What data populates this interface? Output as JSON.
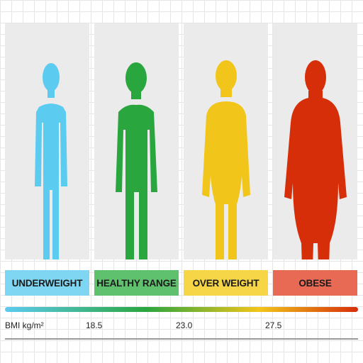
{
  "categories": [
    {
      "key": "underweight",
      "label": "UNDERWEIGHT",
      "figure_color": "#5ccbf0",
      "label_bg": "#7fd6f2"
    },
    {
      "key": "healthy",
      "label": "HEALTHY RANGE",
      "figure_color": "#2aa63e",
      "label_bg": "#5fc06e"
    },
    {
      "key": "overweight",
      "label": "OVER WEIGHT",
      "figure_color": "#f2c51b",
      "label_bg": "#f6d646"
    },
    {
      "key": "obese",
      "label": "OBESE",
      "figure_color": "#d72e0a",
      "label_bg": "#e86a54"
    }
  ],
  "scale": {
    "unit_label": "BMI kg/m²",
    "ticks": [
      "18.5",
      "23.0",
      "27.5"
    ],
    "gradient_colors": [
      "#5ccbf0",
      "#2aa63e",
      "#f2c51b",
      "#d72e0a"
    ]
  }
}
